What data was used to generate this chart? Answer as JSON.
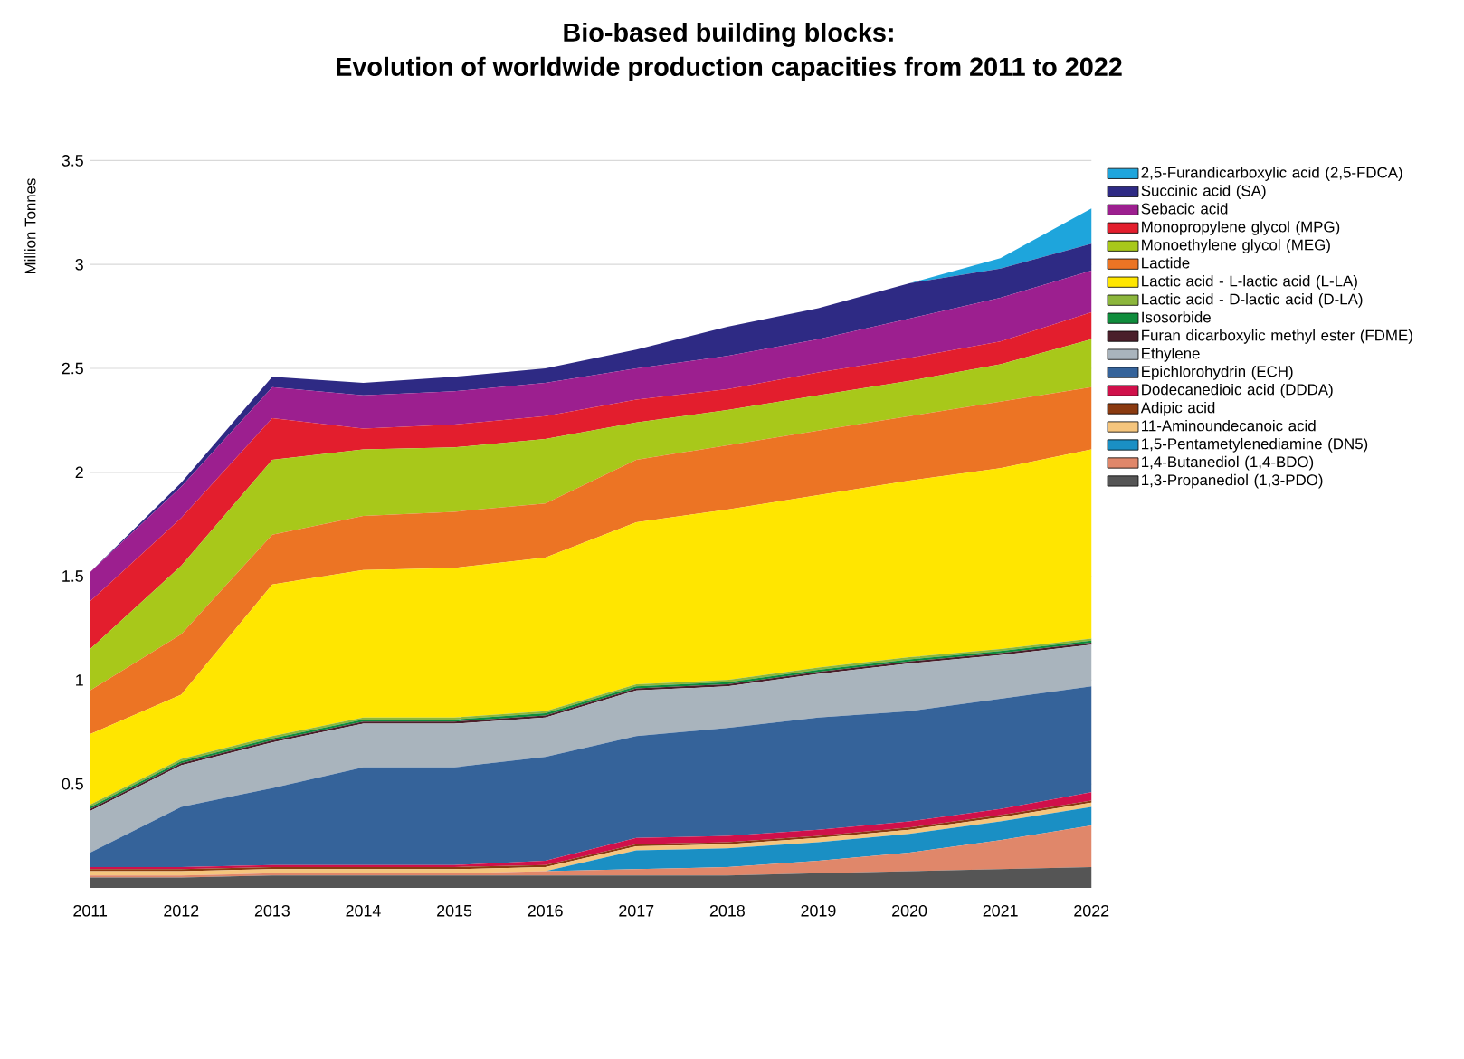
{
  "chart_data": {
    "type": "area",
    "stacked": true,
    "title": "Bio-based building blocks:",
    "subtitle": "Evolution of worldwide production capacities from 2011 to 2022",
    "ylabel": "Million Tonnes",
    "categories": [
      "2011",
      "2012",
      "2013",
      "2014",
      "2015",
      "2016",
      "2017",
      "2018",
      "2019",
      "2020",
      "2021",
      "2022"
    ],
    "ylim": [
      0,
      3.5
    ],
    "yticks": [
      0.5,
      1,
      1.5,
      2,
      2.5,
      3,
      3.5
    ],
    "grid": "y",
    "legend": "right",
    "series": [
      {
        "name": "1,3-Propanediol (1,3-PDO)",
        "color": "#555555",
        "values": [
          0.05,
          0.05,
          0.06,
          0.06,
          0.06,
          0.06,
          0.06,
          0.06,
          0.07,
          0.08,
          0.09,
          0.1
        ]
      },
      {
        "name": "1,4-Butanediol (1,4-BDO)",
        "color": "#e0876a",
        "values": [
          0.01,
          0.01,
          0.01,
          0.01,
          0.01,
          0.02,
          0.03,
          0.04,
          0.06,
          0.09,
          0.14,
          0.2
        ]
      },
      {
        "name": "1,5-Pentametylenediamine (DN5)",
        "color": "#1a8fc4",
        "values": [
          0,
          0,
          0,
          0,
          0,
          0,
          0.09,
          0.09,
          0.09,
          0.09,
          0.09,
          0.09
        ]
      },
      {
        "name": "11-Aminoundecanoic acid",
        "color": "#f5c57d",
        "values": [
          0.02,
          0.02,
          0.02,
          0.02,
          0.02,
          0.02,
          0.02,
          0.02,
          0.02,
          0.02,
          0.02,
          0.02
        ]
      },
      {
        "name": "Adipic acid",
        "color": "#8a3a10",
        "values": [
          0.01,
          0.01,
          0.01,
          0.01,
          0.01,
          0.01,
          0.01,
          0.01,
          0.01,
          0.01,
          0.01,
          0.01
        ]
      },
      {
        "name": "Dodecanedioic acid (DDDA)",
        "color": "#d0104a",
        "values": [
          0.01,
          0.01,
          0.01,
          0.01,
          0.01,
          0.02,
          0.03,
          0.03,
          0.03,
          0.03,
          0.03,
          0.04
        ]
      },
      {
        "name": "Epichlorohydrin (ECH)",
        "color": "#35639a",
        "values": [
          0.07,
          0.29,
          0.37,
          0.47,
          0.47,
          0.5,
          0.49,
          0.52,
          0.54,
          0.53,
          0.53,
          0.51
        ]
      },
      {
        "name": "Ethylene",
        "color": "#a9b4bd",
        "values": [
          0.2,
          0.2,
          0.22,
          0.21,
          0.21,
          0.19,
          0.22,
          0.2,
          0.21,
          0.23,
          0.21,
          0.2
        ]
      },
      {
        "name": "Furan dicarboxylic methyl ester (FDME)",
        "color": "#4a1f2a",
        "values": [
          0.01,
          0.01,
          0.01,
          0.01,
          0.01,
          0.01,
          0.01,
          0.01,
          0.01,
          0.01,
          0.01,
          0.01
        ]
      },
      {
        "name": "Isosorbide",
        "color": "#0f8c3c",
        "values": [
          0.01,
          0.01,
          0.01,
          0.01,
          0.01,
          0.01,
          0.01,
          0.01,
          0.01,
          0.01,
          0.01,
          0.01
        ]
      },
      {
        "name": "Lactic acid - D-lactic acid (D-LA)",
        "color": "#8cb63c",
        "values": [
          0.01,
          0.01,
          0.01,
          0.01,
          0.01,
          0.01,
          0.01,
          0.01,
          0.01,
          0.01,
          0.01,
          0.01
        ]
      },
      {
        "name": "Lactic acid - L-lactic acid (L-LA)",
        "color": "#ffe600",
        "values": [
          0.34,
          0.31,
          0.73,
          0.71,
          0.72,
          0.74,
          0.78,
          0.82,
          0.83,
          0.85,
          0.87,
          0.91
        ]
      },
      {
        "name": "Lactide",
        "color": "#ec7424",
        "values": [
          0.21,
          0.29,
          0.24,
          0.26,
          0.27,
          0.26,
          0.3,
          0.31,
          0.31,
          0.31,
          0.32,
          0.3
        ]
      },
      {
        "name": "Monoethylene glycol (MEG)",
        "color": "#a8c81a",
        "values": [
          0.2,
          0.33,
          0.36,
          0.32,
          0.31,
          0.31,
          0.18,
          0.17,
          0.17,
          0.17,
          0.18,
          0.23
        ]
      },
      {
        "name": "Monopropylene glycol (MPG)",
        "color": "#e31e2d",
        "values": [
          0.23,
          0.23,
          0.2,
          0.1,
          0.11,
          0.11,
          0.11,
          0.1,
          0.11,
          0.11,
          0.11,
          0.13
        ]
      },
      {
        "name": "Sebacic acid",
        "color": "#9c1f8f",
        "values": [
          0.14,
          0.15,
          0.15,
          0.16,
          0.16,
          0.16,
          0.15,
          0.16,
          0.16,
          0.19,
          0.21,
          0.2
        ]
      },
      {
        "name": "Succinic acid (SA)",
        "color": "#2e2a84",
        "values": [
          0,
          0.02,
          0.05,
          0.06,
          0.07,
          0.07,
          0.09,
          0.14,
          0.15,
          0.17,
          0.14,
          0.13
        ]
      },
      {
        "name": "2,5-Furandicarboxylic acid (2,5-FDCA)",
        "color": "#1ea5dc",
        "values": [
          0,
          0,
          0,
          0,
          0,
          0,
          0,
          0,
          0,
          0,
          0.05,
          0.17
        ]
      }
    ]
  }
}
